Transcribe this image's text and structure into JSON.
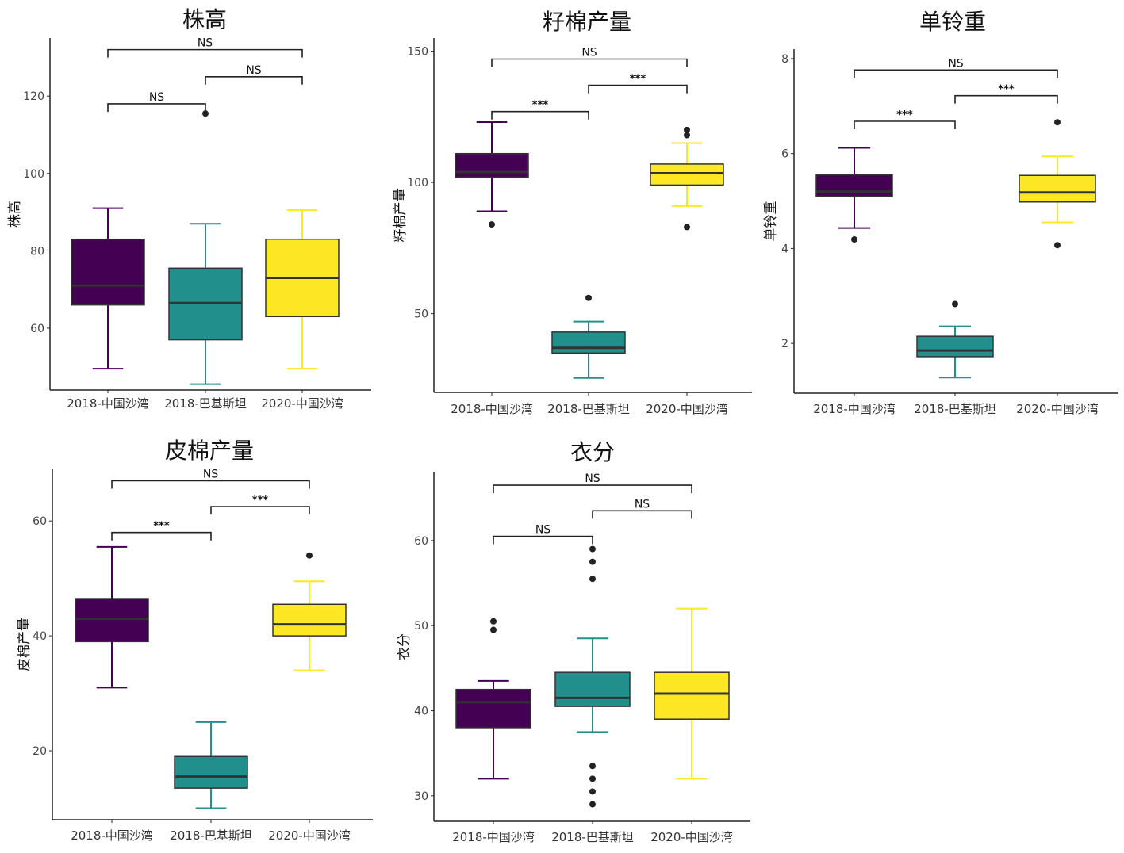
{
  "chart_data": [
    {
      "type": "boxplot",
      "title": "株高",
      "ylabel": "株高",
      "categories": [
        "2018-中国沙湾",
        "2018-巴基斯坦",
        "2020-中国沙湾"
      ],
      "yticks": [
        60,
        80,
        100,
        120
      ],
      "ylim": [
        44,
        135
      ],
      "boxes": [
        {
          "q1": 66,
          "median": 71,
          "q3": 83,
          "whisker_low": 49.5,
          "whisker_high": 91,
          "outliers": []
        },
        {
          "q1": 57,
          "median": 66.5,
          "q3": 75.5,
          "whisker_low": 45.5,
          "whisker_high": 87,
          "outliers": [
            115.5
          ]
        },
        {
          "q1": 63,
          "median": 73,
          "q3": 83,
          "whisker_low": 49.5,
          "whisker_high": 90.5,
          "outliers": []
        }
      ],
      "comparisons": [
        {
          "from": 0,
          "to": 2,
          "label": "NS",
          "y": 132
        },
        {
          "from": 1,
          "to": 2,
          "label": "NS",
          "y": 125
        },
        {
          "from": 0,
          "to": 1,
          "label": "NS",
          "y": 118
        }
      ]
    },
    {
      "type": "boxplot",
      "title": "籽棉产量",
      "ylabel": "籽棉产量",
      "categories": [
        "2018-中国沙湾",
        "2018-巴基斯坦",
        "2020-中国沙湾"
      ],
      "yticks": [
        50,
        100,
        150
      ],
      "ylim": [
        20,
        155
      ],
      "boxes": [
        {
          "q1": 102,
          "median": 104,
          "q3": 111,
          "whisker_low": 89,
          "whisker_high": 123,
          "outliers": [
            84
          ]
        },
        {
          "q1": 35,
          "median": 37,
          "q3": 43,
          "whisker_low": 25.5,
          "whisker_high": 47,
          "outliers": [
            56
          ]
        },
        {
          "q1": 99,
          "median": 103.5,
          "q3": 107,
          "whisker_low": 91,
          "whisker_high": 115,
          "outliers": [
            118,
            120,
            83
          ]
        }
      ],
      "comparisons": [
        {
          "from": 0,
          "to": 2,
          "label": "NS",
          "y": 147
        },
        {
          "from": 1,
          "to": 2,
          "label": "***",
          "y": 137
        },
        {
          "from": 0,
          "to": 1,
          "label": "***",
          "y": 127
        }
      ]
    },
    {
      "type": "boxplot",
      "title": "单铃重",
      "ylabel": "单铃重",
      "categories": [
        "2018-中国沙湾",
        "2018-巴基斯坦",
        "2020-中国沙湾"
      ],
      "yticks": [
        2,
        4,
        6,
        8
      ],
      "ylim": [
        0.95,
        8.2
      ],
      "boxes": [
        {
          "q1": 5.1,
          "median": 5.2,
          "q3": 5.55,
          "whisker_low": 4.43,
          "whisker_high": 6.12,
          "outliers": [
            4.19
          ]
        },
        {
          "q1": 1.72,
          "median": 1.85,
          "q3": 2.15,
          "whisker_low": 1.28,
          "whisker_high": 2.36,
          "outliers": [
            2.83
          ]
        },
        {
          "q1": 4.98,
          "median": 5.18,
          "q3": 5.54,
          "whisker_low": 4.55,
          "whisker_high": 5.94,
          "outliers": [
            6.66,
            4.07
          ]
        }
      ],
      "comparisons": [
        {
          "from": 0,
          "to": 2,
          "label": "NS",
          "y": 7.76
        },
        {
          "from": 1,
          "to": 2,
          "label": "***",
          "y": 7.22
        },
        {
          "from": 0,
          "to": 1,
          "label": "***",
          "y": 6.68
        }
      ]
    },
    {
      "type": "boxplot",
      "title": "皮棉产量",
      "ylabel": "皮棉产量",
      "categories": [
        "2018-中国沙湾",
        "2018-巴基斯坦",
        "2020-中国沙湾"
      ],
      "yticks": [
        20,
        40,
        60
      ],
      "ylim": [
        8,
        69
      ],
      "boxes": [
        {
          "q1": 39,
          "median": 43,
          "q3": 46.5,
          "whisker_low": 31,
          "whisker_high": 55.5,
          "outliers": []
        },
        {
          "q1": 13.5,
          "median": 15.5,
          "q3": 19,
          "whisker_low": 10,
          "whisker_high": 25,
          "outliers": []
        },
        {
          "q1": 40,
          "median": 42,
          "q3": 45.5,
          "whisker_low": 34,
          "whisker_high": 49.5,
          "outliers": [
            54
          ]
        }
      ],
      "comparisons": [
        {
          "from": 0,
          "to": 2,
          "label": "NS",
          "y": 67
        },
        {
          "from": 1,
          "to": 2,
          "label": "***",
          "y": 62.5
        },
        {
          "from": 0,
          "to": 1,
          "label": "***",
          "y": 58
        }
      ]
    },
    {
      "type": "boxplot",
      "title": "衣分",
      "ylabel": "衣分",
      "categories": [
        "2018-中国沙湾",
        "2018-巴基斯坦",
        "2020-中国沙湾"
      ],
      "yticks": [
        30,
        40,
        50,
        60
      ],
      "ylim": [
        27,
        68
      ],
      "boxes": [
        {
          "q1": 38,
          "median": 41,
          "q3": 42.5,
          "whisker_low": 32,
          "whisker_high": 43.5,
          "outliers": [
            50.5,
            49.5
          ]
        },
        {
          "q1": 40.5,
          "median": 41.5,
          "q3": 44.5,
          "whisker_low": 37.5,
          "whisker_high": 48.5,
          "outliers": [
            59,
            57.5,
            55.5,
            33.5,
            32,
            30.5,
            29
          ]
        },
        {
          "q1": 39,
          "median": 42,
          "q3": 44.5,
          "whisker_low": 32,
          "whisker_high": 52,
          "outliers": []
        }
      ],
      "comparisons": [
        {
          "from": 0,
          "to": 2,
          "label": "NS",
          "y": 66.5
        },
        {
          "from": 1,
          "to": 2,
          "label": "NS",
          "y": 63.5
        },
        {
          "from": 0,
          "to": 1,
          "label": "NS",
          "y": 60.5
        }
      ]
    }
  ],
  "colors": {
    "group_fills": [
      "#440154",
      "#21908C",
      "#FDE725"
    ],
    "group_lines": [
      "#440154",
      "#21908C",
      "#FDE725"
    ],
    "box_outline": "#333333",
    "axis": "#222222",
    "outlier": "#222222"
  }
}
